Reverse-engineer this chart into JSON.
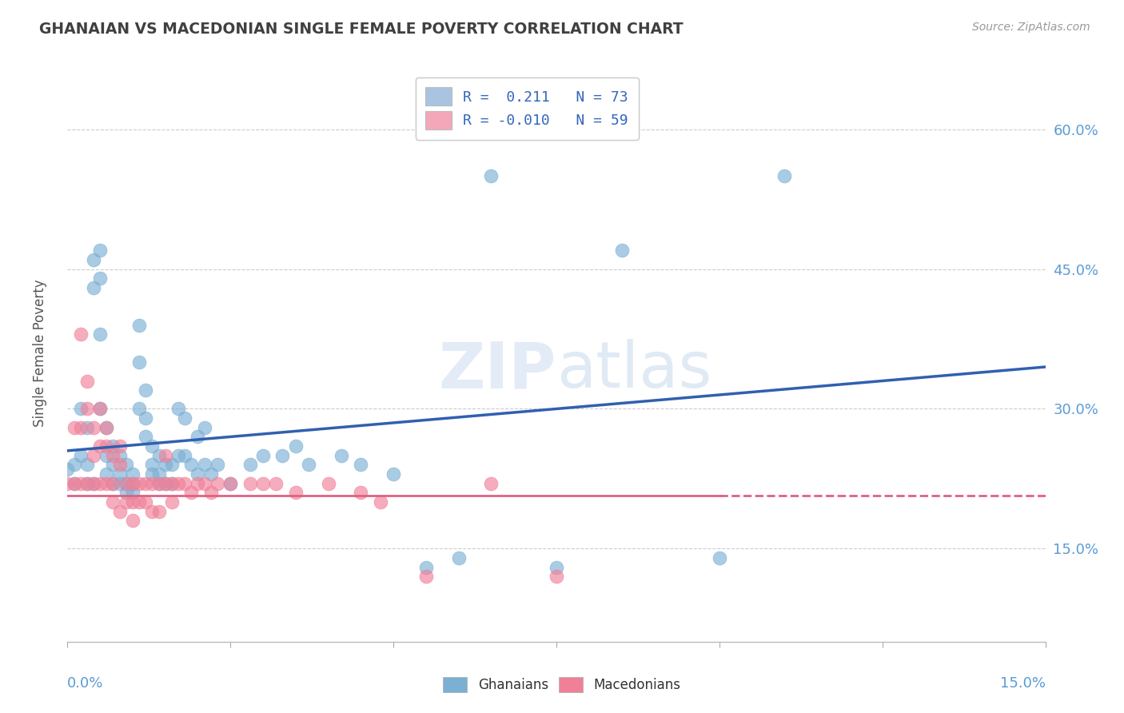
{
  "title": "GHANAIAN VS MACEDONIAN SINGLE FEMALE POVERTY CORRELATION CHART",
  "source": "Source: ZipAtlas.com",
  "ylabel": "Single Female Poverty",
  "yaxis_ticks": [
    0.15,
    0.3,
    0.45,
    0.6
  ],
  "yaxis_labels": [
    "15.0%",
    "30.0%",
    "45.0%",
    "60.0%"
  ],
  "xlim": [
    0.0,
    0.15
  ],
  "ylim": [
    0.05,
    0.67
  ],
  "watermark": "ZIPatlas",
  "legend_entries": [
    {
      "label": "R =  0.211   N = 73",
      "color": "#a8c4e0"
    },
    {
      "label": "R = -0.010   N = 59",
      "color": "#f4a7b9"
    }
  ],
  "ghanaian_scatter_color": "#7bafd4",
  "macedonian_scatter_color": "#f08098",
  "ghanaian_line_color": "#3060b0",
  "macedonian_line_color": "#e06080",
  "background_color": "#ffffff",
  "grid_color": "#cccccc",
  "title_color": "#404040",
  "axis_label_color": "#5b9bd5",
  "ghanaian_points": [
    [
      0.0,
      0.235
    ],
    [
      0.001,
      0.24
    ],
    [
      0.001,
      0.22
    ],
    [
      0.002,
      0.25
    ],
    [
      0.002,
      0.3
    ],
    [
      0.003,
      0.28
    ],
    [
      0.003,
      0.24
    ],
    [
      0.003,
      0.22
    ],
    [
      0.004,
      0.46
    ],
    [
      0.004,
      0.43
    ],
    [
      0.004,
      0.22
    ],
    [
      0.005,
      0.47
    ],
    [
      0.005,
      0.44
    ],
    [
      0.005,
      0.38
    ],
    [
      0.005,
      0.3
    ],
    [
      0.006,
      0.28
    ],
    [
      0.006,
      0.25
    ],
    [
      0.006,
      0.23
    ],
    [
      0.007,
      0.26
    ],
    [
      0.007,
      0.24
    ],
    [
      0.007,
      0.22
    ],
    [
      0.008,
      0.25
    ],
    [
      0.008,
      0.23
    ],
    [
      0.008,
      0.22
    ],
    [
      0.009,
      0.24
    ],
    [
      0.009,
      0.22
    ],
    [
      0.009,
      0.21
    ],
    [
      0.01,
      0.23
    ],
    [
      0.01,
      0.22
    ],
    [
      0.01,
      0.21
    ],
    [
      0.011,
      0.39
    ],
    [
      0.011,
      0.35
    ],
    [
      0.011,
      0.3
    ],
    [
      0.012,
      0.32
    ],
    [
      0.012,
      0.29
    ],
    [
      0.012,
      0.27
    ],
    [
      0.013,
      0.26
    ],
    [
      0.013,
      0.24
    ],
    [
      0.013,
      0.23
    ],
    [
      0.014,
      0.25
    ],
    [
      0.014,
      0.23
    ],
    [
      0.014,
      0.22
    ],
    [
      0.015,
      0.24
    ],
    [
      0.015,
      0.22
    ],
    [
      0.016,
      0.24
    ],
    [
      0.016,
      0.22
    ],
    [
      0.017,
      0.3
    ],
    [
      0.017,
      0.25
    ],
    [
      0.018,
      0.29
    ],
    [
      0.018,
      0.25
    ],
    [
      0.019,
      0.24
    ],
    [
      0.02,
      0.27
    ],
    [
      0.02,
      0.23
    ],
    [
      0.021,
      0.28
    ],
    [
      0.021,
      0.24
    ],
    [
      0.022,
      0.23
    ],
    [
      0.023,
      0.24
    ],
    [
      0.025,
      0.22
    ],
    [
      0.028,
      0.24
    ],
    [
      0.03,
      0.25
    ],
    [
      0.033,
      0.25
    ],
    [
      0.035,
      0.26
    ],
    [
      0.037,
      0.24
    ],
    [
      0.042,
      0.25
    ],
    [
      0.045,
      0.24
    ],
    [
      0.05,
      0.23
    ],
    [
      0.055,
      0.13
    ],
    [
      0.06,
      0.14
    ],
    [
      0.065,
      0.55
    ],
    [
      0.075,
      0.13
    ],
    [
      0.085,
      0.47
    ],
    [
      0.1,
      0.14
    ],
    [
      0.11,
      0.55
    ]
  ],
  "macedonian_points": [
    [
      0.0,
      0.22
    ],
    [
      0.001,
      0.28
    ],
    [
      0.001,
      0.22
    ],
    [
      0.002,
      0.38
    ],
    [
      0.002,
      0.28
    ],
    [
      0.002,
      0.22
    ],
    [
      0.003,
      0.33
    ],
    [
      0.003,
      0.3
    ],
    [
      0.003,
      0.22
    ],
    [
      0.004,
      0.28
    ],
    [
      0.004,
      0.25
    ],
    [
      0.004,
      0.22
    ],
    [
      0.005,
      0.3
    ],
    [
      0.005,
      0.26
    ],
    [
      0.005,
      0.22
    ],
    [
      0.006,
      0.28
    ],
    [
      0.006,
      0.26
    ],
    [
      0.006,
      0.22
    ],
    [
      0.007,
      0.25
    ],
    [
      0.007,
      0.22
    ],
    [
      0.007,
      0.2
    ],
    [
      0.008,
      0.26
    ],
    [
      0.008,
      0.24
    ],
    [
      0.008,
      0.19
    ],
    [
      0.009,
      0.22
    ],
    [
      0.009,
      0.2
    ],
    [
      0.01,
      0.22
    ],
    [
      0.01,
      0.2
    ],
    [
      0.01,
      0.18
    ],
    [
      0.011,
      0.22
    ],
    [
      0.011,
      0.2
    ],
    [
      0.012,
      0.22
    ],
    [
      0.012,
      0.2
    ],
    [
      0.013,
      0.22
    ],
    [
      0.013,
      0.19
    ],
    [
      0.014,
      0.22
    ],
    [
      0.014,
      0.19
    ],
    [
      0.015,
      0.25
    ],
    [
      0.015,
      0.22
    ],
    [
      0.016,
      0.22
    ],
    [
      0.016,
      0.2
    ],
    [
      0.017,
      0.22
    ],
    [
      0.018,
      0.22
    ],
    [
      0.019,
      0.21
    ],
    [
      0.02,
      0.22
    ],
    [
      0.021,
      0.22
    ],
    [
      0.022,
      0.21
    ],
    [
      0.023,
      0.22
    ],
    [
      0.025,
      0.22
    ],
    [
      0.028,
      0.22
    ],
    [
      0.03,
      0.22
    ],
    [
      0.032,
      0.22
    ],
    [
      0.035,
      0.21
    ],
    [
      0.04,
      0.22
    ],
    [
      0.045,
      0.21
    ],
    [
      0.048,
      0.2
    ],
    [
      0.055,
      0.12
    ],
    [
      0.065,
      0.22
    ],
    [
      0.075,
      0.12
    ]
  ]
}
